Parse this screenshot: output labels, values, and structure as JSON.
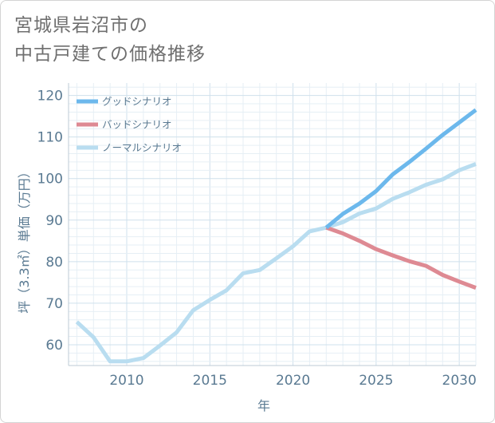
{
  "title_lines": [
    "宮城県岩沼市の",
    "中古戸建ての価格推移"
  ],
  "chart_data": {
    "type": "line",
    "title": "宮城県岩沼市の中古戸建ての価格推移",
    "xlabel": "年",
    "ylabel": "坪（3.3㎡）単価（万円）",
    "xlim": [
      2006.5,
      2031
    ],
    "ylim": [
      55,
      123
    ],
    "x_ticks": [
      2010,
      2015,
      2020,
      2025,
      2030
    ],
    "y_ticks": [
      60,
      70,
      80,
      90,
      100,
      110,
      120
    ],
    "grid": true,
    "legend_position": "top-left",
    "series": [
      {
        "name": "グッドシナリオ",
        "color": "#6cb8ec",
        "x": [
          2022,
          2023,
          2024,
          2025,
          2026,
          2027,
          2028,
          2029,
          2030,
          2031
        ],
        "values": [
          88.2,
          91.5,
          94.0,
          97.0,
          101.0,
          104.0,
          107.2,
          110.5,
          113.5,
          116.5
        ]
      },
      {
        "name": "バッドシナリオ",
        "color": "#de8a93",
        "x": [
          2022,
          2023,
          2024,
          2025,
          2026,
          2027,
          2028,
          2029,
          2030,
          2031
        ],
        "values": [
          88.2,
          86.8,
          85.0,
          83.0,
          81.5,
          80.1,
          79.0,
          76.8,
          75.2,
          73.7
        ]
      },
      {
        "name": "ノーマルシナリオ",
        "color": "#b9ddf0",
        "x": [
          2007,
          2008,
          2009,
          2010,
          2011,
          2012,
          2013,
          2014,
          2015,
          2016,
          2017,
          2018,
          2019,
          2020,
          2021,
          2022,
          2023,
          2024,
          2025,
          2026,
          2027,
          2028,
          2029,
          2030,
          2031
        ],
        "values": [
          65.5,
          61.8,
          56.0,
          56.0,
          56.8,
          59.8,
          63.0,
          68.3,
          70.8,
          73.1,
          77.2,
          78.0,
          80.8,
          83.7,
          87.3,
          88.2,
          89.5,
          91.6,
          92.8,
          95.1,
          96.7,
          98.5,
          99.8,
          102.0,
          103.5
        ]
      }
    ]
  }
}
